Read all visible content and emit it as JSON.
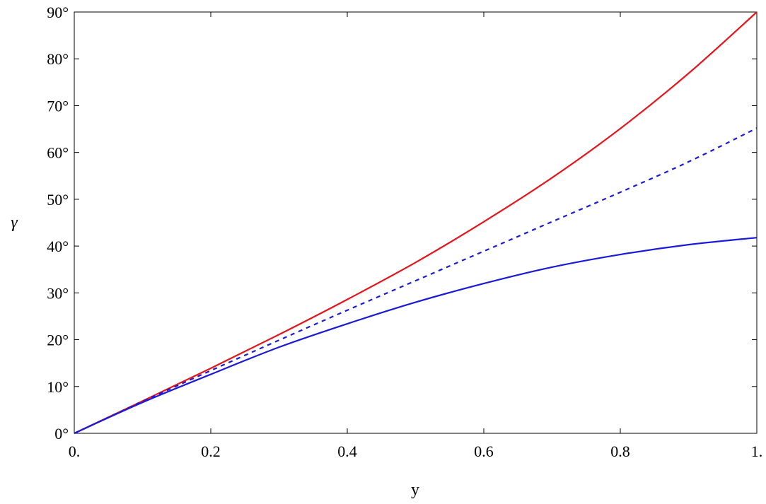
{
  "chart_data": {
    "type": "line",
    "title": "",
    "xlabel": "y",
    "ylabel": "γ",
    "xlim": [
      0,
      1
    ],
    "ylim": [
      0,
      90
    ],
    "grid": false,
    "x_ticks": [
      {
        "value": 0,
        "label": "0."
      },
      {
        "value": 0.2,
        "label": "0.2"
      },
      {
        "value": 0.4,
        "label": "0.4"
      },
      {
        "value": 0.6,
        "label": "0.6"
      },
      {
        "value": 0.8,
        "label": "0.8"
      },
      {
        "value": 1,
        "label": "1."
      }
    ],
    "y_ticks": [
      {
        "value": 0,
        "label": "0°"
      },
      {
        "value": 10,
        "label": "10°"
      },
      {
        "value": 20,
        "label": "20°"
      },
      {
        "value": 30,
        "label": "30°"
      },
      {
        "value": 40,
        "label": "40°"
      },
      {
        "value": 50,
        "label": "50°"
      },
      {
        "value": 60,
        "label": "60°"
      },
      {
        "value": 70,
        "label": "70°"
      },
      {
        "value": 80,
        "label": "80°"
      },
      {
        "value": 90,
        "label": "90°"
      }
    ],
    "series": [
      {
        "color": "#e8141b",
        "style": "solid",
        "x": [
          0,
          0.1,
          0.2,
          0.3,
          0.4,
          0.5,
          0.6,
          0.7,
          0.8,
          0.9,
          1.0
        ],
        "y": [
          0,
          6.9,
          13.9,
          21.1,
          28.6,
          36.5,
          45.2,
          54.6,
          65.1,
          76.9,
          90.0
        ]
      },
      {
        "color": "#1a1adb",
        "style": "dashed",
        "x": [
          0,
          0.1,
          0.2,
          0.3,
          0.4,
          0.5,
          0.6,
          0.7,
          0.8,
          0.9,
          1.0
        ],
        "y": [
          0,
          6.8,
          13.4,
          19.9,
          26.3,
          32.6,
          38.9,
          45.2,
          51.5,
          58.0,
          65.2
        ]
      },
      {
        "color": "#1a1adb",
        "style": "solid",
        "x": [
          0,
          0.1,
          0.2,
          0.3,
          0.4,
          0.5,
          0.6,
          0.7,
          0.8,
          0.9,
          1.0
        ],
        "y": [
          0,
          6.6,
          12.6,
          18.4,
          23.4,
          28.0,
          32.0,
          35.5,
          38.2,
          40.3,
          41.8
        ]
      }
    ]
  }
}
